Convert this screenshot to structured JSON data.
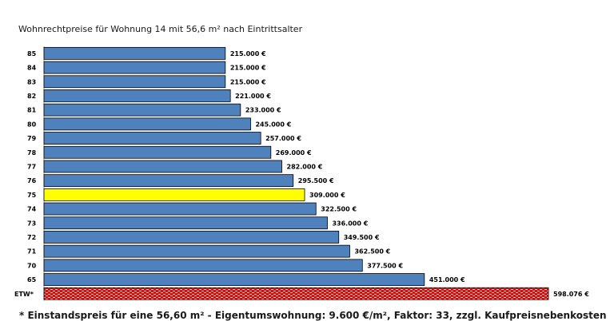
{
  "title": "Wohnrechtpreise  für Wohnung 14 mit 56,6 m² nach Eintrittsalter",
  "footnote": "* Einstandspreis für eine 56,60 m² - Eigentumswohnung: 9.600 €/m², Faktor: 33, zzgl. Kaufpreisnebenkosten",
  "colors": {
    "bar": "#4f81bd",
    "highlight": "#ffff00",
    "etw": "#ff0000",
    "etw_pattern": "#ffc0c0",
    "border": "#000000"
  },
  "chart_data": {
    "type": "bar",
    "orientation": "horizontal",
    "title": "Wohnrechtpreise  für Wohnung 14 mit 56,6 m² nach Eintrittsalter",
    "categories": [
      "85",
      "84",
      "83",
      "82",
      "81",
      "80",
      "79",
      "78",
      "77",
      "76",
      "75",
      "74",
      "73",
      "72",
      "71",
      "70",
      "65",
      "ETW*"
    ],
    "values": [
      215000,
      215000,
      215000,
      221000,
      233000,
      245000,
      257000,
      269000,
      282000,
      295500,
      309000,
      322500,
      336000,
      349500,
      362500,
      377500,
      451000,
      598076
    ],
    "value_labels": [
      "215.000 €",
      "215.000 €",
      "215.000 €",
      "221.000 €",
      "233.000 €",
      "245.000 €",
      "257.000 €",
      "269.000 €",
      "282.000 €",
      "295.500 €",
      "309.000 €",
      "322.500 €",
      "336.000 €",
      "349.500 €",
      "362.500 €",
      "377.500 €",
      "451.000 €",
      "598.076 €"
    ],
    "highlight_category": "75",
    "reference_category": "ETW*",
    "xlim": [
      0,
      598076
    ],
    "grid": false,
    "legend": "none"
  }
}
